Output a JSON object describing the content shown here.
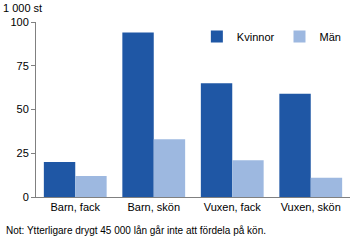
{
  "chart_data": {
    "type": "bar",
    "ylabel": "1 000 st",
    "note": "Not: Ytterligare drygt 45 000 lån går inte att fördela på kön.",
    "categories": [
      "Barn, fack",
      "Barn, skön",
      "Vuxen, fack",
      "Vuxen, skön"
    ],
    "series": [
      {
        "name": "Kvinnor",
        "color": "#1f57a5",
        "values": [
          20,
          94,
          65,
          59
        ]
      },
      {
        "name": "Män",
        "color": "#9db8e0",
        "values": [
          12,
          33,
          21,
          11
        ]
      }
    ],
    "ylim": [
      0,
      100
    ],
    "yticks": [
      0,
      25,
      50,
      75,
      100
    ],
    "grid": false,
    "legend": "top-right"
  }
}
